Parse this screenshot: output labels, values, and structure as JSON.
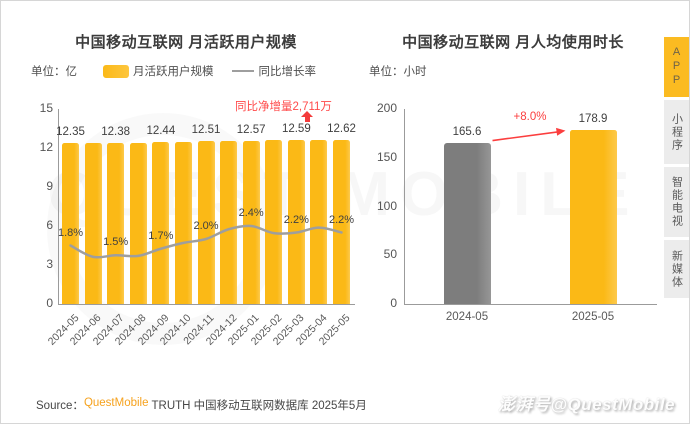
{
  "page": {
    "watermark_center": "QUEST MOBILE",
    "watermark_bottom": "澎湃号@QuestMobile"
  },
  "colors": {
    "accent_yellow": "#FBBB1E",
    "bar_gray": "#868686",
    "line_gray": "#9E9E9E",
    "red": "#FF4A4A"
  },
  "source": {
    "prefix": "Source：",
    "brand": "QuestMobile",
    "suffix": " TRUTH 中国移动互联网数据库 2025年5月"
  },
  "sidebar": {
    "tabs": [
      {
        "label": "APP",
        "active": true
      },
      {
        "label": "小程序",
        "active": false
      },
      {
        "label": "智能电视",
        "active": false
      },
      {
        "label": "新媒体",
        "active": false
      }
    ]
  },
  "chart_data": [
    {
      "type": "bar+line",
      "title": "中国移动互联网 月活跃用户规模",
      "unit": "单位：亿",
      "annotation": "同比净增量2,711万",
      "categories": [
        "2024-05",
        "2024-06",
        "2024-07",
        "2024-08",
        "2024-09",
        "2024-10",
        "2024-11",
        "2024-12",
        "2025-01",
        "2025-02",
        "2025-03",
        "2025-04",
        "2025-05"
      ],
      "bar_series": {
        "name": "月活跃用户规模",
        "values": [
          12.35,
          12.36,
          12.38,
          12.41,
          12.44,
          12.47,
          12.51,
          12.54,
          12.57,
          12.58,
          12.59,
          12.6,
          12.62
        ],
        "labels": [
          "12.35",
          null,
          "12.38",
          null,
          "12.44",
          null,
          "12.51",
          null,
          "12.57",
          null,
          "12.59",
          null,
          "12.62"
        ]
      },
      "line_series": {
        "name": "同比增长率",
        "values": [
          1.8,
          1.45,
          1.5,
          1.48,
          1.7,
          1.88,
          2.0,
          2.3,
          2.4,
          2.18,
          2.2,
          2.35,
          2.2
        ],
        "labels": [
          "1.8%",
          null,
          "1.5%",
          null,
          "1.7%",
          null,
          "2.0%",
          null,
          "2.4%",
          null,
          "2.2%",
          null,
          "2.2%"
        ],
        "axis_max": 6
      },
      "ylim": [
        0,
        15
      ],
      "y_ticks": [
        15,
        12,
        9,
        6,
        3,
        0
      ]
    },
    {
      "type": "bar",
      "title": "中国移动互联网 月人均使用时长",
      "unit": "单位：小时",
      "categories": [
        "2024-05",
        "2025-05"
      ],
      "values": [
        165.6,
        178.9
      ],
      "labels": [
        "165.6",
        "178.9"
      ],
      "bar_colors": [
        "gray",
        "yellow"
      ],
      "growth_annotation": "+8.0%",
      "ylim": [
        0,
        200
      ],
      "y_ticks": [
        200,
        150,
        100,
        50,
        0
      ]
    }
  ]
}
